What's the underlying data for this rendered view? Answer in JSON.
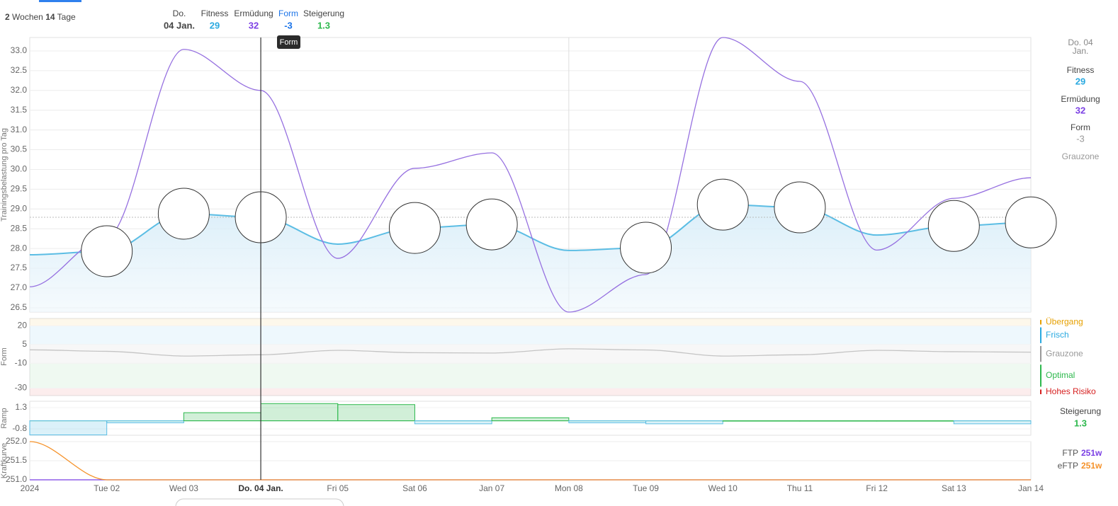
{
  "header": {
    "weeks": "2",
    "weeks_label": "Wochen",
    "days": "14",
    "days_label": "Tage",
    "day": "Do.",
    "date": "04 Jan.",
    "fitness_label": "Fitness",
    "fitness": 29,
    "fatigue_label": "Ermüdung",
    "fatigue": 32,
    "form_label": "Form",
    "form": -3,
    "ramp_label": "Steigerung",
    "ramp": 1.3
  },
  "tooltip": "Form",
  "sidebar": {
    "day": "Do. 04",
    "month": "Jan.",
    "fitness_label": "Fitness",
    "fitness": 29,
    "fatigue_label": "Ermüdung",
    "fatigue": 32,
    "form_label": "Form",
    "form": -3,
    "form_zone": "Grauzone",
    "ramp_label": "Steigerung",
    "ramp": 1.3,
    "ftp_label": "FTP",
    "ftp": "251w",
    "eftp_label": "eFTP",
    "eftp": "251w"
  },
  "chart_data": [
    {
      "type": "line",
      "y_label": "Trainingsbelastung pro Tag",
      "ylim": [
        26.39,
        33.34
      ],
      "yticks": [
        {
          "value": 26.5,
          "label": "26.5"
        },
        {
          "value": 27,
          "label": "27.0"
        },
        27.5,
        {
          "value": 28,
          "label": "28.0"
        },
        28.5,
        {
          "value": 29,
          "label": "29.0"
        },
        29.5,
        {
          "value": 30,
          "label": "30.0"
        },
        30.5,
        {
          "value": 31,
          "label": "31.0"
        },
        31.5,
        {
          "value": 32,
          "label": "32.0"
        },
        32.5,
        {
          "value": 33,
          "label": "33.0"
        }
      ],
      "grid": true,
      "series": [
        {
          "name": "Fitness",
          "color": "#5bbde4",
          "fill": true,
          "values": [
            27.84,
            27.93,
            28.88,
            28.79,
            28.11,
            28.52,
            28.61,
            27.95,
            28.02,
            29.11,
            29.04,
            28.34,
            28.57,
            28.66
          ]
        },
        {
          "name": "Ermüdung",
          "color": "#9670e0",
          "fill": false,
          "values": [
            27.03,
            28.29,
            33.04,
            32.0,
            27.75,
            30.03,
            30.42,
            26.39,
            27.34,
            33.34,
            32.23,
            27.96,
            29.27,
            29.79
          ]
        }
      ]
    },
    {
      "type": "line",
      "y_label": "Form",
      "ylim": [
        -36,
        26
      ],
      "yticks": [
        20,
        5,
        -10,
        -30
      ],
      "zones": [
        {
          "name": "Übergang",
          "color": "#e6a000",
          "from": 20,
          "to": 26
        },
        {
          "name": "Frisch",
          "color": "#29a9e0",
          "from": 5,
          "to": 20
        },
        {
          "name": "Grauzone",
          "color": "#999999",
          "from": -10,
          "to": 5
        },
        {
          "name": "Optimal",
          "color": "#2db84d",
          "from": -30,
          "to": -10
        },
        {
          "name": "Hohes Risiko",
          "color": "#d61f1f",
          "from": -36,
          "to": -30
        }
      ],
      "series": [
        {
          "name": "Form",
          "color": "#c4c4c4",
          "fill": false,
          "values": [
            0.8,
            -0.4,
            -4.2,
            -3.2,
            0.4,
            -1.5,
            -1.8,
            1.6,
            0.7,
            -4.2,
            -3.2,
            0.4,
            -0.7,
            -1.1
          ]
        }
      ]
    },
    {
      "type": "step",
      "y_label": "Ramp",
      "ylim": [
        -1.43,
        1.93
      ],
      "yticks": [
        1.3,
        -0.8
      ],
      "color": "#2db84d",
      "negative_color": "#5bbde4",
      "values": [
        -1.4,
        -0.2,
        0.8,
        1.7,
        1.6,
        -0.3,
        0.3,
        -0.2,
        -0.3,
        0.0,
        0.0,
        0.0,
        -0.3,
        null
      ]
    },
    {
      "type": "line",
      "y_label": "Kraftkurve",
      "ylim": [
        251,
        252
      ],
      "yticks": [
        {
          "value": 251,
          "label": "251.0"
        },
        251.5,
        {
          "value": 252,
          "label": "252.0"
        }
      ],
      "grid": true,
      "categories": [
        "2024",
        "Tue 02",
        "Wed 03",
        "Do. 04 Jan.",
        "Fri 05",
        "Sat 06",
        "Jan 07",
        "Mon 08",
        "Tue 09",
        "Wed 10",
        "Thu 11",
        "Fri 12",
        "Sat 13",
        "Jan 14"
      ],
      "series": [
        {
          "name": "FTP",
          "color": "#7b3fe4",
          "fill": false,
          "values": [
            251,
            251,
            251,
            251,
            251,
            251,
            251,
            251,
            251,
            251,
            251,
            251,
            251,
            251
          ]
        },
        {
          "name": "eFTP",
          "color": "#f5922a",
          "fill": false,
          "values": [
            252,
            251,
            251,
            251,
            251,
            251,
            251,
            251,
            251,
            251,
            251,
            251,
            251,
            251
          ]
        }
      ]
    }
  ]
}
